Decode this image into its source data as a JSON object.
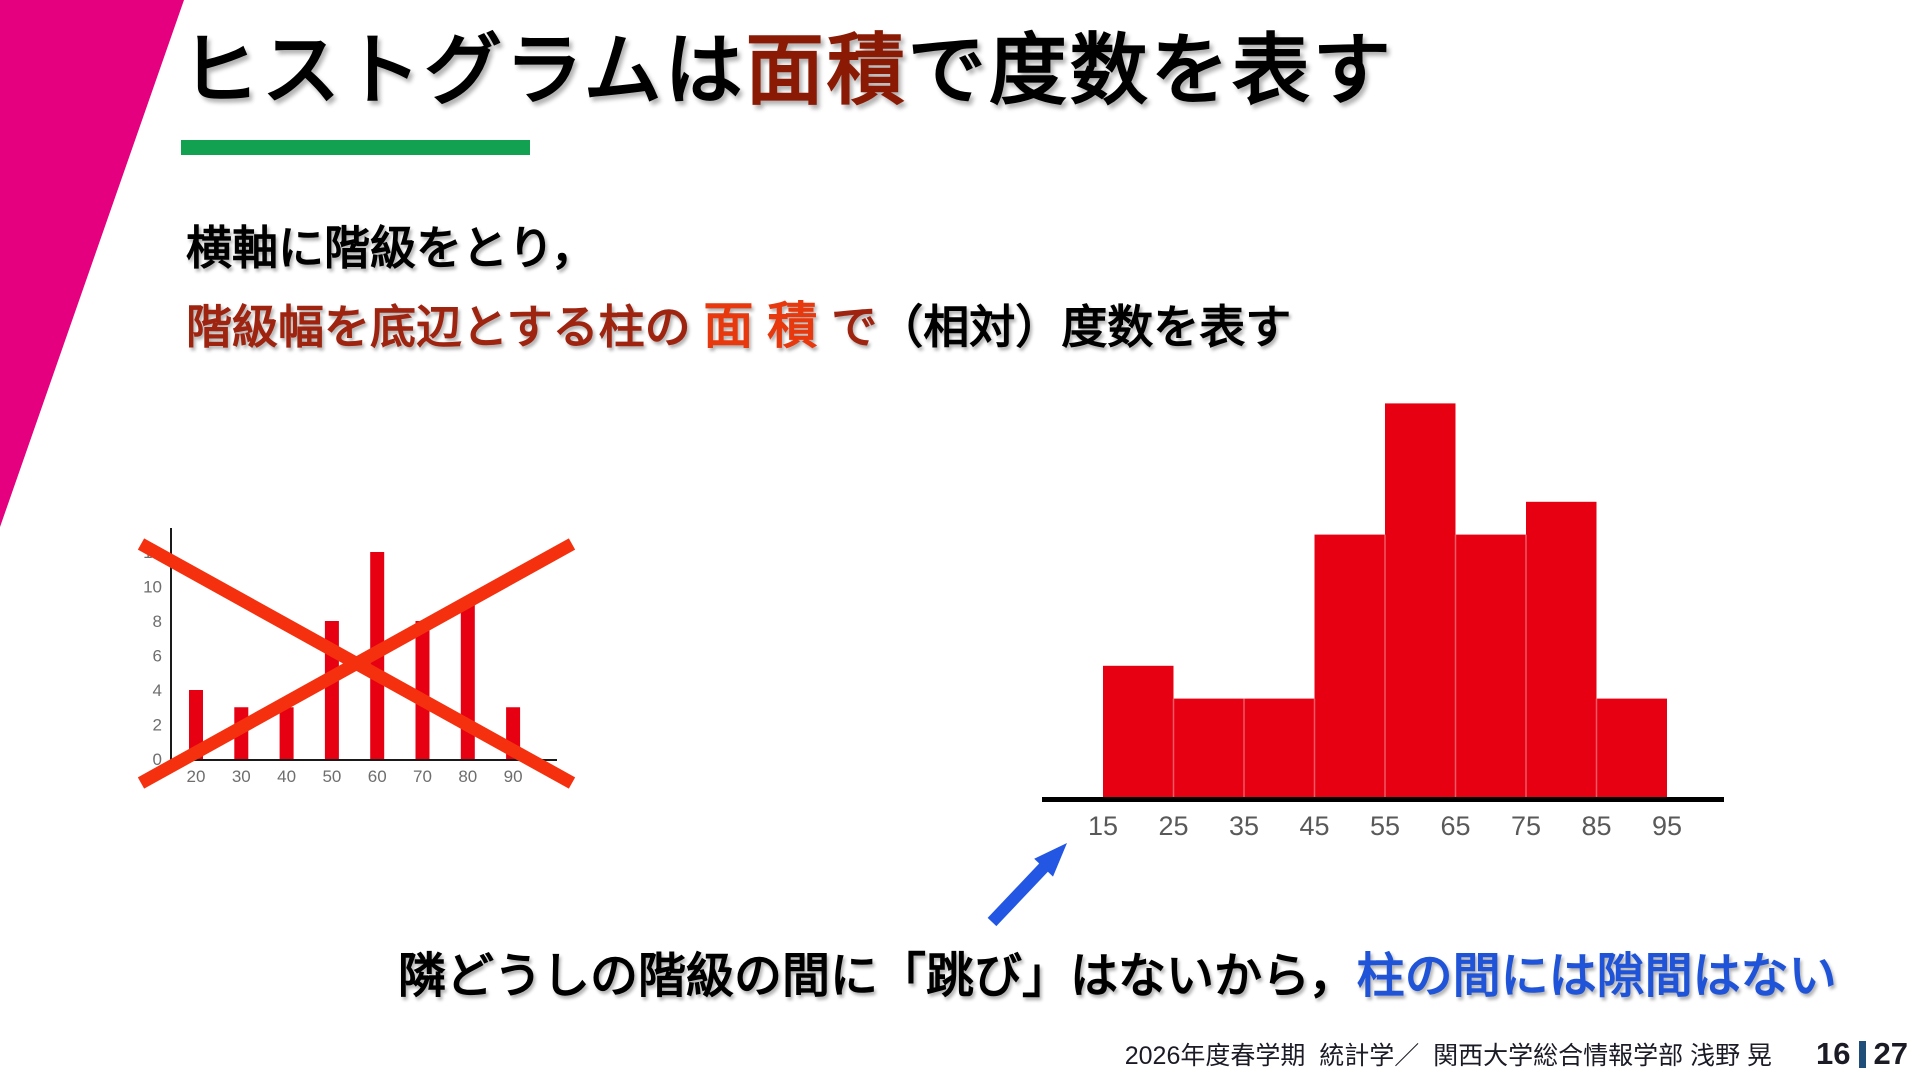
{
  "slide": {
    "title": {
      "pre": "ヒストグラムは",
      "highlight": "面積",
      "post": "で度数を表す"
    },
    "body": {
      "line1": "横軸に階級をとり，",
      "line2_seg1": "階級幅を底辺とする柱の ",
      "line2_seg2": "面 積 ",
      "line2_seg3": "で",
      "line2_seg4": "（相対）度数を表す"
    },
    "note": {
      "black": "隣どうしの階級の間に「跳び」はないから，",
      "blue": "柱の間には隙間はない"
    },
    "footer": {
      "course": "2026年度春学期  統計学／  関西大学総合情報学部 浅野 晃",
      "page_current": "16",
      "page_total": "27"
    },
    "colors": {
      "magenta": "#E4007F",
      "title_red": "#8B1A05",
      "green": "#12A150",
      "dark_red": "#9E2410",
      "bright_red": "#E8380D",
      "bar_red": "#E60012",
      "cross_red": "#F5300E",
      "blue_text": "#1F53D8",
      "arrow_blue": "#2256E3",
      "page_bar": "#1F4E79",
      "tick_gray": "#6E6E6E",
      "tick_gray2": "#595959"
    }
  },
  "chart_data": [
    {
      "type": "bar",
      "title": "",
      "categories": [
        20,
        30,
        40,
        50,
        60,
        70,
        80,
        90
      ],
      "values": [
        4,
        3,
        3,
        8,
        12,
        8,
        9,
        3
      ],
      "xlabel": "",
      "ylabel": "",
      "ylim": [
        0,
        12
      ],
      "yticks": [
        0,
        2,
        4,
        6,
        8,
        10,
        12
      ],
      "grid": false,
      "legend": false,
      "bar_color": "#E60012",
      "annotation": "crossed out with large red X (bars with gaps = wrong)"
    },
    {
      "type": "bar",
      "subtype": "histogram",
      "title": "",
      "bin_edges": [
        15,
        25,
        35,
        45,
        55,
        65,
        75,
        85,
        95
      ],
      "frequencies": [
        4,
        3,
        3,
        8,
        12,
        8,
        9,
        3
      ],
      "xlabel": "",
      "ylabel": "",
      "grid": false,
      "legend": false,
      "y_axis_shown": false,
      "bar_color": "#E60012",
      "annotation": "contiguous bars, no gaps between columns; tick labels mark bin edges"
    }
  ]
}
